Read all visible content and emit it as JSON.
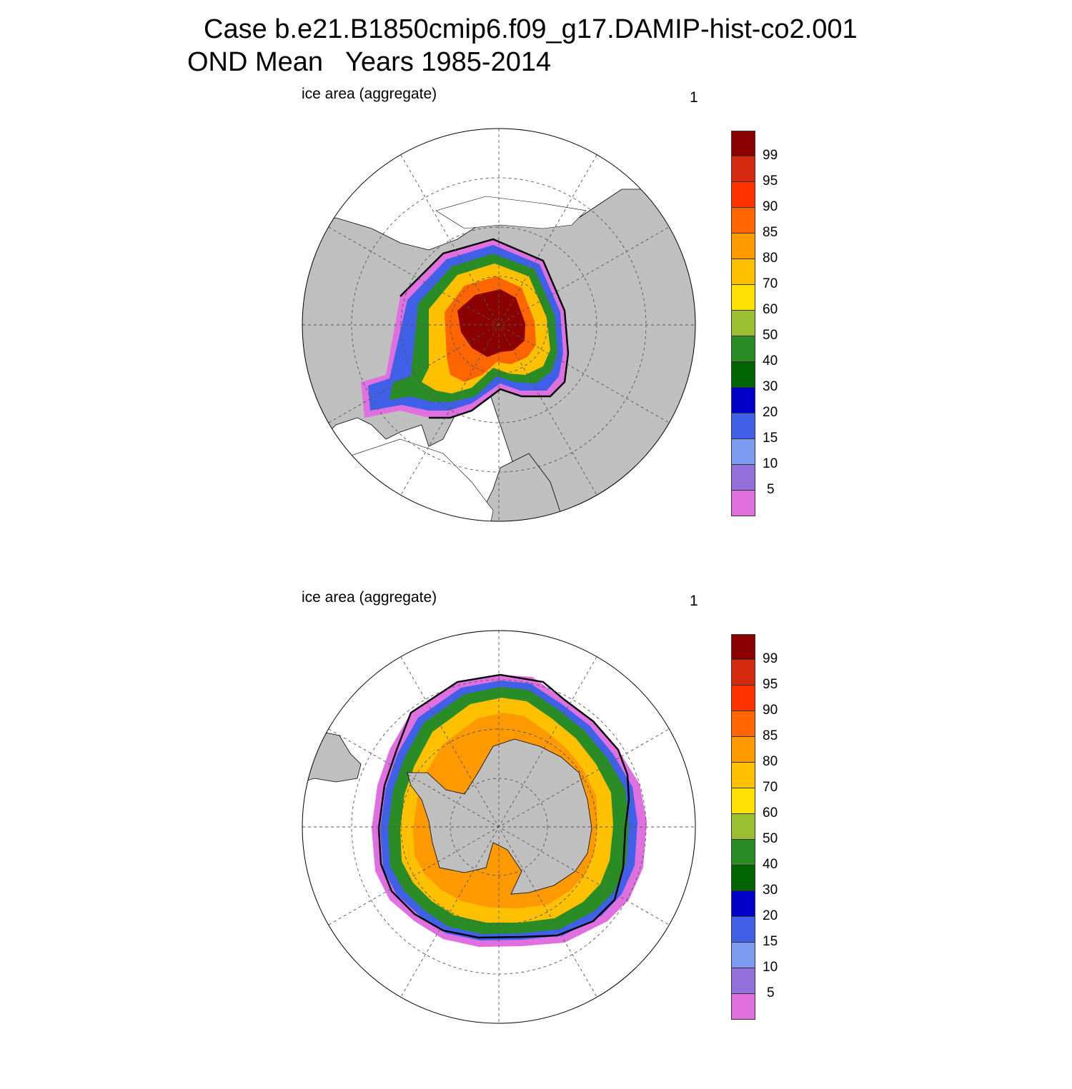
{
  "title": {
    "line1": "Case b.e21.B1850cmip6.f09_g17.DAMIP-hist-co2.001",
    "line2": "OND Mean   Years 1985-2014"
  },
  "panels": [
    {
      "hemisphere": "north",
      "left_label": "ice area  (aggregate)",
      "right_label": "1"
    },
    {
      "hemisphere": "south",
      "left_label": "ice area  (aggregate)",
      "right_label": "1"
    }
  ],
  "colorbar": {
    "labels": [
      "99",
      "95",
      "90",
      "85",
      "80",
      "70",
      "60",
      "50",
      "40",
      "30",
      "20",
      "15",
      "10",
      "5"
    ],
    "colors": [
      "#8b0000",
      "#d62a10",
      "#ff3300",
      "#ff6600",
      "#ff9900",
      "#ffc000",
      "#ffe000",
      "#9bbf32",
      "#2a8c24",
      "#006400",
      "#0000c8",
      "#4060e8",
      "#7b9cf0",
      "#9370db",
      "#e070e0"
    ]
  },
  "colors": {
    "land": "#bfbfbf",
    "ocean": "#ffffff",
    "grid": "#555555",
    "ice_edge": "#000000"
  }
}
